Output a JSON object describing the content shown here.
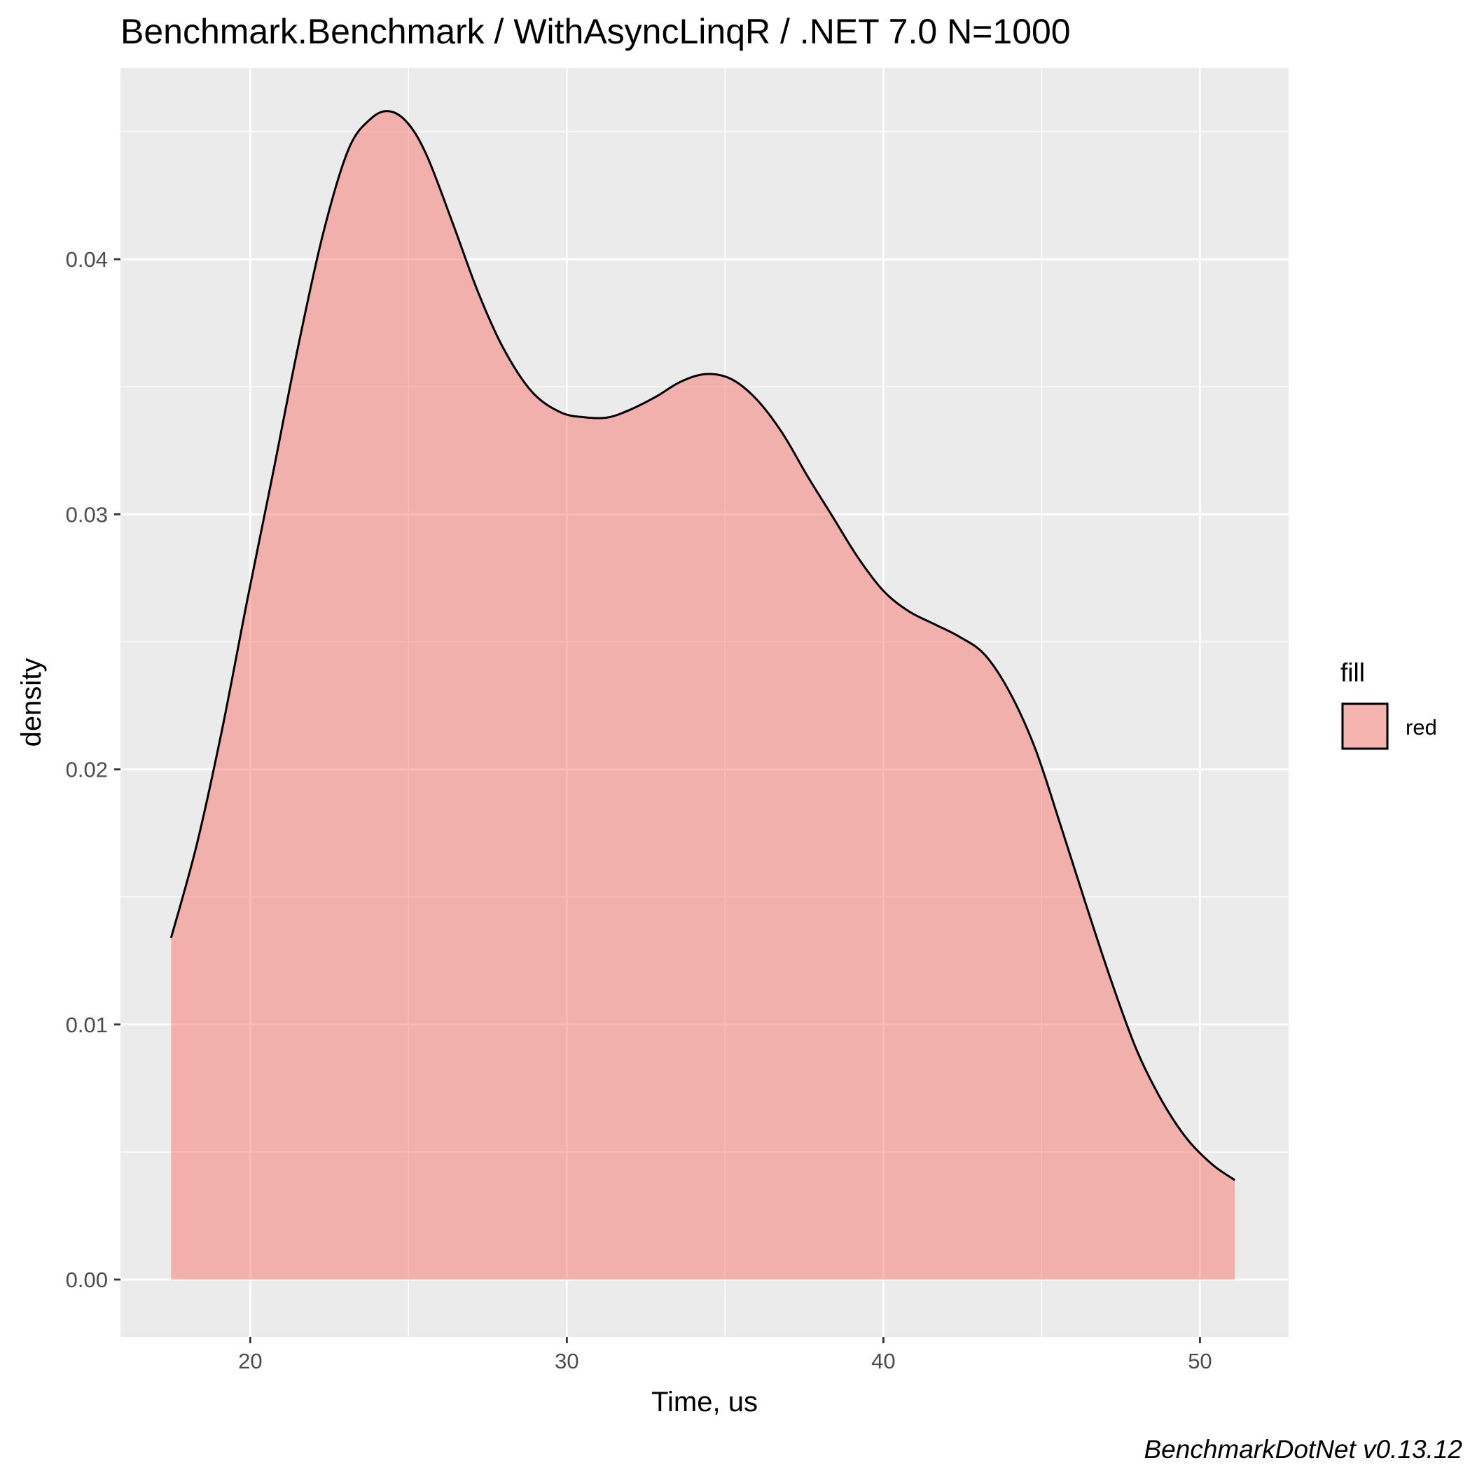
{
  "chart_data": {
    "type": "area",
    "title": "Benchmark.Benchmark / WithAsyncLinqR / .NET 7.0 N=1000",
    "xlabel": "Time, us",
    "ylabel": "density",
    "xlim": [
      15.9,
      52.8
    ],
    "ylim": [
      -0.00225,
      0.0475
    ],
    "x_ticks": [
      20,
      30,
      40,
      50
    ],
    "y_ticks": [
      0.0,
      0.01,
      0.02,
      0.03,
      0.04
    ],
    "x_tick_labels": [
      "20",
      "30",
      "40",
      "50"
    ],
    "y_tick_labels": [
      "0.00",
      "0.01",
      "0.02",
      "0.03",
      "0.04"
    ],
    "grid": true,
    "legend": {
      "title": "fill",
      "placement": "right",
      "entries": [
        {
          "label": "red",
          "color": "#F8766D"
        }
      ]
    },
    "caption": "BenchmarkDotNet v0.13.12",
    "series": [
      {
        "fill_color": "#F8766D",
        "fill_alpha": 0.5,
        "line_color": "#000000",
        "x": [
          17.5,
          18.3,
          19.1,
          19.9,
          20.7,
          21.5,
          22.3,
          23.1,
          23.8,
          24.4,
          25.0,
          25.6,
          26.4,
          27.2,
          28.0,
          28.9,
          29.8,
          30.6,
          31.3,
          32.0,
          32.8,
          33.6,
          34.4,
          35.2,
          36.0,
          36.8,
          37.6,
          38.4,
          39.2,
          40.0,
          40.8,
          41.6,
          42.4,
          43.2,
          44.0,
          44.8,
          45.6,
          46.4,
          47.2,
          48.0,
          48.8,
          49.6,
          50.4,
          51.1
        ],
        "y": [
          0.0134,
          0.017,
          0.0215,
          0.0266,
          0.0315,
          0.0365,
          0.041,
          0.0443,
          0.0455,
          0.0458,
          0.0453,
          0.044,
          0.0414,
          0.0387,
          0.0365,
          0.0348,
          0.034,
          0.0338,
          0.0338,
          0.0341,
          0.0346,
          0.0352,
          0.0355,
          0.0353,
          0.0345,
          0.0332,
          0.0315,
          0.0299,
          0.0283,
          0.027,
          0.0262,
          0.0257,
          0.0252,
          0.0245,
          0.023,
          0.0208,
          0.0178,
          0.0147,
          0.0117,
          0.009,
          0.007,
          0.0055,
          0.0045,
          0.0039
        ]
      }
    ]
  }
}
